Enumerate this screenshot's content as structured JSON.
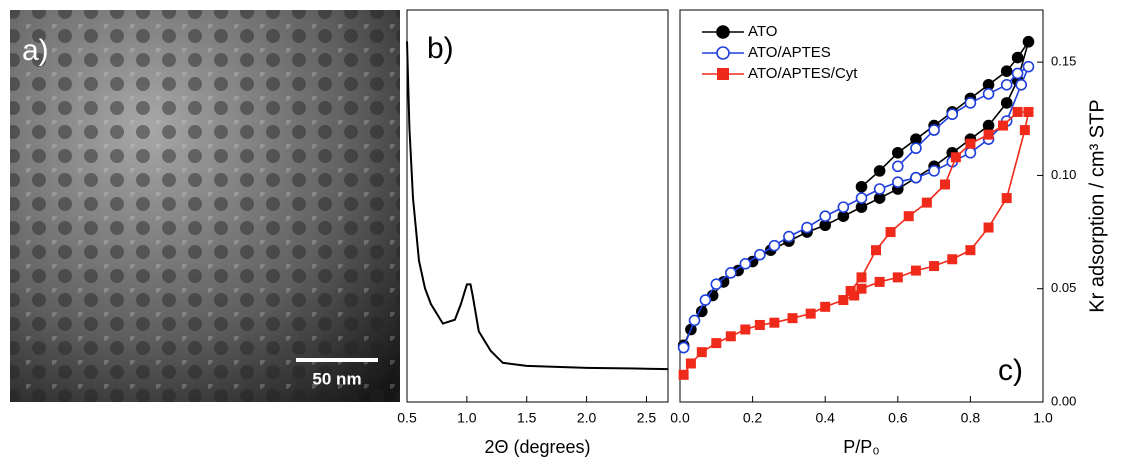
{
  "panel_a": {
    "label": "a)",
    "scale_bar": "50 nm"
  },
  "chart_data": [
    {
      "type": "line",
      "panel_label": "b)",
      "x_label": "2Θ (degrees)",
      "color": "#000000",
      "x": [
        0.5,
        0.52,
        0.55,
        0.6,
        0.65,
        0.7,
        0.8,
        0.9,
        0.95,
        1.0,
        1.03,
        1.05,
        1.1,
        1.2,
        1.3,
        1.5,
        2.0,
        2.5,
        2.68
      ],
      "values": [
        0.92,
        0.7,
        0.52,
        0.36,
        0.29,
        0.25,
        0.2,
        0.21,
        0.25,
        0.3,
        0.3,
        0.27,
        0.18,
        0.13,
        0.1,
        0.092,
        0.087,
        0.085,
        0.084
      ],
      "xlim": [
        0.5,
        2.68
      ],
      "ylim": [
        0,
        1
      ],
      "xticks": [
        {
          "value": 0.5,
          "label": "0.5"
        },
        {
          "value": 1,
          "label": "1.0"
        },
        {
          "value": 1.5,
          "label": "1.5"
        },
        {
          "value": 2,
          "label": "2.0"
        },
        {
          "value": 2.5,
          "label": "2.5"
        }
      ]
    },
    {
      "type": "scatter-line",
      "panel_label": "c)",
      "x_label": "P/P₀",
      "y_label": "Kr adsorption / cm³ STP",
      "legend": "upper left",
      "xlim": [
        0,
        1
      ],
      "y2lim": [
        0,
        0.173
      ],
      "xticks": [
        {
          "value": 0,
          "label": "0.0"
        },
        {
          "value": 0.2,
          "label": "0.2"
        },
        {
          "value": 0.4,
          "label": "0.4"
        },
        {
          "value": 0.6,
          "label": "0.6"
        },
        {
          "value": 0.8,
          "label": "0.8"
        },
        {
          "value": 1,
          "label": "1.0"
        }
      ],
      "y2ticks": [
        {
          "value": 0,
          "label": "0.00"
        },
        {
          "value": 0.05,
          "label": "0.05"
        },
        {
          "value": 0.1,
          "label": "0.10"
        },
        {
          "value": 0.15,
          "label": "0.15"
        }
      ],
      "series": [
        {
          "name": "ATO",
          "color": "#000000",
          "marker": "filled-circle",
          "axis": "y2",
          "x": [
            0.01,
            0.03,
            0.06,
            0.09,
            0.12,
            0.16,
            0.2,
            0.25,
            0.3,
            0.35,
            0.4,
            0.45,
            0.5,
            0.55,
            0.6,
            0.65,
            0.7,
            0.75,
            0.8,
            0.85,
            0.9,
            0.93,
            0.96,
            0.93,
            0.9,
            0.85,
            0.8,
            0.75,
            0.7,
            0.65,
            0.6,
            0.55,
            0.5
          ],
          "values": [
            0.025,
            0.032,
            0.04,
            0.047,
            0.053,
            0.058,
            0.062,
            0.067,
            0.071,
            0.075,
            0.078,
            0.082,
            0.086,
            0.09,
            0.094,
            0.099,
            0.104,
            0.11,
            0.116,
            0.122,
            0.132,
            0.142,
            0.159,
            0.152,
            0.146,
            0.14,
            0.134,
            0.128,
            0.122,
            0.116,
            0.11,
            0.102,
            0.095
          ]
        },
        {
          "name": "ATO/APTES",
          "color": "#1f3fdc",
          "marker": "open-circle",
          "axis": "y2",
          "x": [
            0.01,
            0.04,
            0.07,
            0.1,
            0.14,
            0.18,
            0.22,
            0.26,
            0.3,
            0.35,
            0.4,
            0.45,
            0.5,
            0.55,
            0.6,
            0.65,
            0.7,
            0.75,
            0.8,
            0.85,
            0.9,
            0.94,
            0.96,
            0.93,
            0.9,
            0.85,
            0.8,
            0.75,
            0.7,
            0.65,
            0.6
          ],
          "values": [
            0.024,
            0.036,
            0.045,
            0.052,
            0.057,
            0.061,
            0.065,
            0.069,
            0.073,
            0.077,
            0.082,
            0.086,
            0.09,
            0.094,
            0.097,
            0.099,
            0.102,
            0.106,
            0.11,
            0.116,
            0.124,
            0.14,
            0.148,
            0.145,
            0.14,
            0.136,
            0.132,
            0.127,
            0.12,
            0.112,
            0.104
          ]
        },
        {
          "name": "ATO/APTES/Cyt",
          "color": "#f02a1a",
          "marker": "square",
          "axis": "y2",
          "x": [
            0.01,
            0.03,
            0.06,
            0.1,
            0.14,
            0.18,
            0.22,
            0.26,
            0.31,
            0.36,
            0.4,
            0.45,
            0.48,
            0.5,
            0.55,
            0.6,
            0.65,
            0.7,
            0.75,
            0.8,
            0.85,
            0.9,
            0.95,
            0.96,
            0.93,
            0.89,
            0.85,
            0.8,
            0.76,
            0.73,
            0.68,
            0.63,
            0.58,
            0.54,
            0.5,
            0.47
          ],
          "values": [
            0.012,
            0.017,
            0.022,
            0.026,
            0.029,
            0.032,
            0.034,
            0.035,
            0.037,
            0.039,
            0.042,
            0.045,
            0.047,
            0.05,
            0.053,
            0.055,
            0.058,
            0.06,
            0.063,
            0.067,
            0.077,
            0.09,
            0.12,
            0.128,
            0.128,
            0.122,
            0.118,
            0.114,
            0.108,
            0.096,
            0.088,
            0.082,
            0.075,
            0.067,
            0.055,
            0.049
          ]
        }
      ]
    }
  ]
}
